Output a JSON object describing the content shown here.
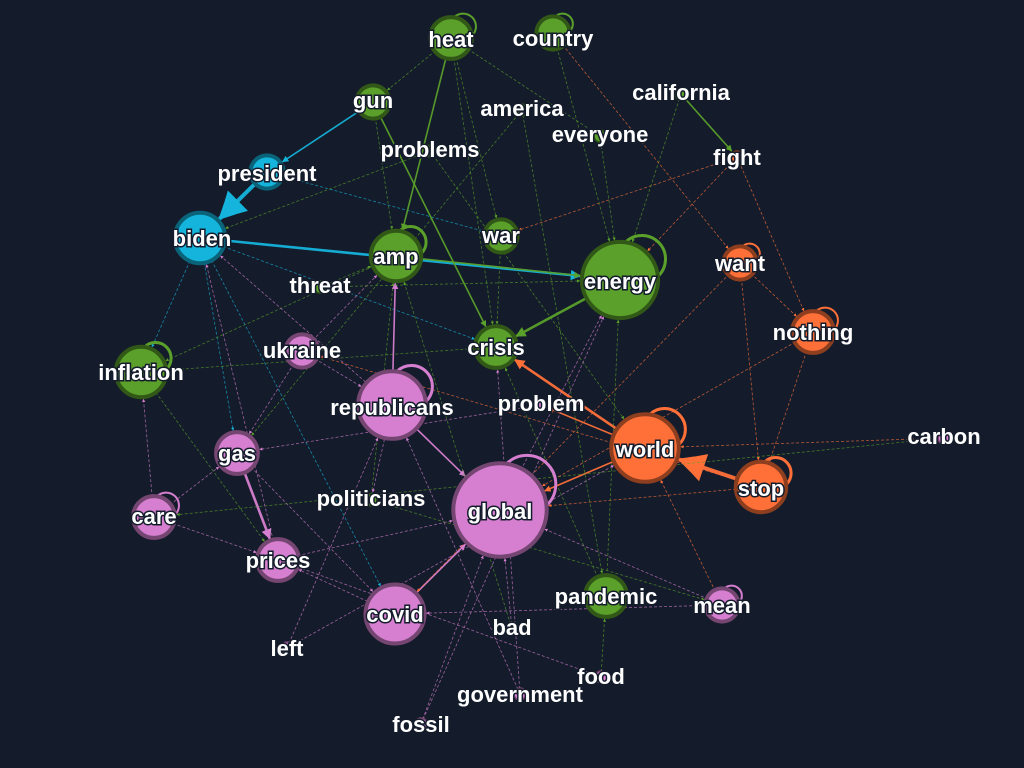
{
  "colors": {
    "background": "#141c2b",
    "blue": "#14b4dc",
    "green": "#5aa02a",
    "orange": "#ff7039",
    "purple": "#d67fd0"
  },
  "nodes": [
    {
      "id": "heat",
      "label": "heat",
      "group": "green",
      "weight": 3
    },
    {
      "id": "country",
      "label": "country",
      "group": "green",
      "weight": 2
    },
    {
      "id": "gun",
      "label": "gun",
      "group": "green",
      "weight": 2
    },
    {
      "id": "america",
      "label": "america",
      "group": "green",
      "weight": 1
    },
    {
      "id": "california",
      "label": "california",
      "group": "green",
      "weight": 1
    },
    {
      "id": "everyone",
      "label": "everyone",
      "group": "green",
      "weight": 1
    },
    {
      "id": "problems",
      "label": "problems",
      "group": "green",
      "weight": 1
    },
    {
      "id": "fight",
      "label": "fight",
      "group": "orange",
      "weight": 1
    },
    {
      "id": "president",
      "label": "president",
      "group": "blue",
      "weight": 2
    },
    {
      "id": "biden",
      "label": "biden",
      "group": "blue",
      "weight": 4
    },
    {
      "id": "amp",
      "label": "amp",
      "group": "green",
      "weight": 4
    },
    {
      "id": "war",
      "label": "war",
      "group": "green",
      "weight": 2
    },
    {
      "id": "want",
      "label": "want",
      "group": "orange",
      "weight": 2
    },
    {
      "id": "energy",
      "label": "energy",
      "group": "green",
      "weight": 7
    },
    {
      "id": "threat",
      "label": "threat",
      "group": "green",
      "weight": 1
    },
    {
      "id": "nothing",
      "label": "nothing",
      "group": "orange",
      "weight": 3
    },
    {
      "id": "ukraine",
      "label": "ukraine",
      "group": "purple",
      "weight": 2
    },
    {
      "id": "crisis",
      "label": "crisis",
      "group": "green",
      "weight": 3
    },
    {
      "id": "inflation",
      "label": "inflation",
      "group": "green",
      "weight": 4
    },
    {
      "id": "republicans",
      "label": "republicans",
      "group": "purple",
      "weight": 6
    },
    {
      "id": "problem",
      "label": "problem",
      "group": "purple",
      "weight": 1
    },
    {
      "id": "world",
      "label": "world",
      "group": "orange",
      "weight": 6
    },
    {
      "id": "carbon",
      "label": "carbon",
      "group": "purple",
      "weight": 1
    },
    {
      "id": "gas",
      "label": "gas",
      "group": "purple",
      "weight": 3
    },
    {
      "id": "stop",
      "label": "stop",
      "group": "orange",
      "weight": 4
    },
    {
      "id": "politicians",
      "label": "politicians",
      "group": "green",
      "weight": 1
    },
    {
      "id": "global",
      "label": "global",
      "group": "purple",
      "weight": 9
    },
    {
      "id": "care",
      "label": "care",
      "group": "purple",
      "weight": 3
    },
    {
      "id": "prices",
      "label": "prices",
      "group": "purple",
      "weight": 3
    },
    {
      "id": "pandemic",
      "label": "pandemic",
      "group": "green",
      "weight": 3
    },
    {
      "id": "mean",
      "label": "mean",
      "group": "purple",
      "weight": 2
    },
    {
      "id": "covid",
      "label": "covid",
      "group": "purple",
      "weight": 5
    },
    {
      "id": "bad",
      "label": "bad",
      "group": "purple",
      "weight": 1
    },
    {
      "id": "left",
      "label": "left",
      "group": "purple",
      "weight": 1
    },
    {
      "id": "food",
      "label": "food",
      "group": "purple",
      "weight": 1
    },
    {
      "id": "government",
      "label": "government",
      "group": "purple",
      "weight": 1
    },
    {
      "id": "fossil",
      "label": "fossil",
      "group": "purple",
      "weight": 1
    }
  ],
  "edges": [
    {
      "source": "president",
      "target": "biden",
      "group": "blue",
      "strength": 10
    },
    {
      "source": "biden",
      "target": "energy",
      "group": "blue",
      "strength": 3
    },
    {
      "source": "gun",
      "target": "president",
      "group": "blue",
      "strength": 2
    },
    {
      "source": "biden",
      "target": "inflation",
      "group": "blue",
      "strength": 1
    },
    {
      "source": "biden",
      "target": "covid",
      "group": "blue",
      "strength": 1
    },
    {
      "source": "biden",
      "target": "crisis",
      "group": "blue",
      "strength": 1
    },
    {
      "source": "president",
      "target": "war",
      "group": "blue",
      "strength": 1
    },
    {
      "source": "biden",
      "target": "gas",
      "group": "blue",
      "strength": 1
    },
    {
      "source": "stop",
      "target": "world",
      "group": "orange",
      "strength": 8
    },
    {
      "source": "world",
      "target": "crisis",
      "group": "orange",
      "strength": 3
    },
    {
      "source": "world",
      "target": "global",
      "group": "orange",
      "strength": 2
    },
    {
      "source": "world",
      "target": "problem",
      "group": "orange",
      "strength": 2
    },
    {
      "source": "fight",
      "target": "war",
      "group": "orange",
      "strength": 1
    },
    {
      "source": "fight",
      "target": "nothing",
      "group": "orange",
      "strength": 1
    },
    {
      "source": "want",
      "target": "stop",
      "group": "orange",
      "strength": 1
    },
    {
      "source": "nothing",
      "target": "stop",
      "group": "orange",
      "strength": 1
    },
    {
      "source": "stop",
      "target": "global",
      "group": "orange",
      "strength": 1
    },
    {
      "source": "carbon",
      "target": "world",
      "group": "orange",
      "strength": 1
    },
    {
      "source": "want",
      "target": "nothing",
      "group": "orange",
      "strength": 1
    },
    {
      "source": "energy",
      "target": "crisis",
      "group": "green",
      "strength": 3
    },
    {
      "source": "california",
      "target": "fight",
      "group": "green",
      "strength": 2
    },
    {
      "source": "heat",
      "target": "gun",
      "group": "green",
      "strength": 1
    },
    {
      "source": "heat",
      "target": "amp",
      "group": "green",
      "strength": 2
    },
    {
      "source": "heat",
      "target": "war",
      "group": "green",
      "strength": 1
    },
    {
      "source": "gun",
      "target": "crisis",
      "group": "green",
      "strength": 2
    },
    {
      "source": "country",
      "target": "energy",
      "group": "green",
      "strength": 1
    },
    {
      "source": "amp",
      "target": "inflation",
      "group": "green",
      "strength": 1
    },
    {
      "source": "amp",
      "target": "energy",
      "group": "green",
      "strength": 2
    },
    {
      "source": "war",
      "target": "crisis",
      "group": "green",
      "strength": 1
    },
    {
      "source": "pandemic",
      "target": "energy",
      "group": "green",
      "strength": 1
    },
    {
      "source": "pandemic",
      "target": "crisis",
      "group": "green",
      "strength": 1
    },
    {
      "source": "threat",
      "target": "amp",
      "group": "green",
      "strength": 1
    },
    {
      "source": "politicians",
      "target": "amp",
      "group": "green",
      "strength": 1
    },
    {
      "source": "everyone",
      "target": "energy",
      "group": "green",
      "strength": 1
    },
    {
      "source": "inflation",
      "target": "crisis",
      "group": "green",
      "strength": 1
    },
    {
      "source": "problems",
      "target": "world",
      "group": "green",
      "strength": 1
    },
    {
      "source": "america",
      "target": "pandemic",
      "group": "green",
      "strength": 1
    },
    {
      "source": "republicans",
      "target": "amp",
      "group": "purple",
      "strength": 2
    },
    {
      "source": "gas",
      "target": "prices",
      "group": "purple",
      "strength": 3
    },
    {
      "source": "care",
      "target": "prices",
      "group": "purple",
      "strength": 1
    },
    {
      "source": "covid",
      "target": "global",
      "group": "purple",
      "strength": 2
    },
    {
      "source": "mean",
      "target": "covid",
      "group": "purple",
      "strength": 1
    },
    {
      "source": "ukraine",
      "target": "gas",
      "group": "purple",
      "strength": 1
    },
    {
      "source": "ukraine",
      "target": "amp",
      "group": "purple",
      "strength": 1
    },
    {
      "source": "republicans",
      "target": "biden",
      "group": "purple",
      "strength": 1
    },
    {
      "source": "republicans",
      "target": "global",
      "group": "purple",
      "strength": 2
    },
    {
      "source": "global",
      "target": "energy",
      "group": "purple",
      "strength": 1
    },
    {
      "source": "prices",
      "target": "global",
      "group": "purple",
      "strength": 1
    },
    {
      "source": "fossil",
      "target": "global",
      "group": "purple",
      "strength": 1
    },
    {
      "source": "government",
      "target": "republicans",
      "group": "purple",
      "strength": 1
    },
    {
      "source": "left",
      "target": "republicans",
      "group": "purple",
      "strength": 1
    },
    {
      "source": "food",
      "target": "prices",
      "group": "purple",
      "strength": 1
    },
    {
      "source": "bad",
      "target": "global",
      "group": "purple",
      "strength": 1
    },
    {
      "source": "care",
      "target": "gas",
      "group": "purple",
      "strength": 1
    },
    {
      "source": "covid",
      "target": "prices",
      "group": "purple",
      "strength": 1
    },
    {
      "source": "mean",
      "target": "global",
      "group": "purple",
      "strength": 1
    },
    {
      "source": "republicans",
      "target": "politicians",
      "group": "purple",
      "strength": 1
    },
    {
      "source": "ukraine",
      "target": "republicans",
      "group": "purple",
      "strength": 1
    },
    {
      "source": "gas",
      "target": "covid",
      "group": "purple",
      "strength": 1
    },
    {
      "source": "carbon",
      "target": "care",
      "group": "green",
      "strength": 1
    },
    {
      "source": "heat",
      "target": "crisis",
      "group": "green",
      "strength": 1
    },
    {
      "source": "gun",
      "target": "amp",
      "group": "green",
      "strength": 1
    },
    {
      "source": "problems",
      "target": "biden",
      "group": "green",
      "strength": 1
    },
    {
      "source": "california",
      "target": "energy",
      "group": "green",
      "strength": 1
    },
    {
      "source": "mean",
      "target": "world",
      "group": "orange",
      "strength": 1
    },
    {
      "source": "nothing",
      "target": "global",
      "group": "orange",
      "strength": 1
    },
    {
      "source": "fight",
      "target": "energy",
      "group": "orange",
      "strength": 1
    },
    {
      "source": "want",
      "target": "covid",
      "group": "orange",
      "strength": 1
    },
    {
      "source": "stop",
      "target": "ukraine",
      "group": "orange",
      "strength": 1
    },
    {
      "source": "left",
      "target": "world",
      "group": "purple",
      "strength": 1
    },
    {
      "source": "fossil",
      "target": "energy",
      "group": "purple",
      "strength": 1
    },
    {
      "source": "government",
      "target": "crisis",
      "group": "purple",
      "strength": 1
    },
    {
      "source": "care",
      "target": "inflation",
      "group": "purple",
      "strength": 1
    },
    {
      "source": "prices",
      "target": "biden",
      "group": "purple",
      "strength": 1
    },
    {
      "source": "food",
      "target": "pandemic",
      "group": "green",
      "strength": 1
    },
    {
      "source": "bad",
      "target": "amp",
      "group": "green",
      "strength": 1
    },
    {
      "source": "threat",
      "target": "energy",
      "group": "green",
      "strength": 1
    },
    {
      "source": "country",
      "target": "want",
      "group": "orange",
      "strength": 1
    },
    {
      "source": "heat",
      "target": "everyone",
      "group": "green",
      "strength": 1
    },
    {
      "source": "america",
      "target": "gas",
      "group": "green",
      "strength": 1
    },
    {
      "source": "inflation",
      "target": "prices",
      "group": "green",
      "strength": 1
    },
    {
      "source": "politicians",
      "target": "mean",
      "group": "green",
      "strength": 1
    },
    {
      "source": "problem",
      "target": "gas",
      "group": "purple",
      "strength": 1
    }
  ],
  "self_loops": [
    "heat",
    "country",
    "amp",
    "energy",
    "want",
    "nothing",
    "inflation",
    "republicans",
    "world",
    "stop",
    "global",
    "care",
    "mean"
  ]
}
